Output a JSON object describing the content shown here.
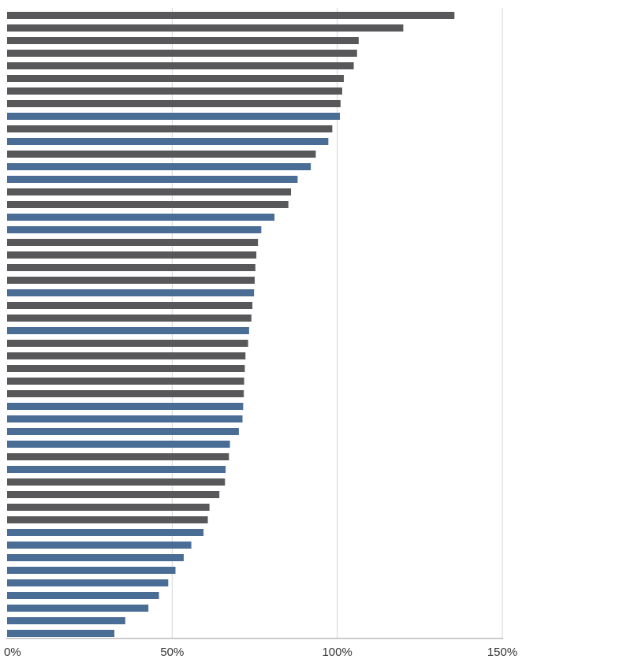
{
  "chart_data": {
    "type": "bar",
    "orientation": "horizontal",
    "title": "",
    "xlabel": "",
    "ylabel": "",
    "xlim": [
      0,
      150
    ],
    "x_ticks": [
      {
        "value": 0,
        "label": "0%"
      },
      {
        "value": 50,
        "label": "50%"
      },
      {
        "value": 100,
        "label": "100%"
      },
      {
        "value": 150,
        "label": "150%"
      }
    ],
    "grid": "vertical",
    "legend": "none",
    "colors": {
      "gray": "#58585a",
      "blue": "#4a6d95",
      "grid": "#d4d4d4",
      "axis": "#9a9a9a"
    },
    "bars": [
      {
        "value": 135.5,
        "color": "gray"
      },
      {
        "value": 120.0,
        "color": "gray"
      },
      {
        "value": 106.5,
        "color": "gray"
      },
      {
        "value": 106.0,
        "color": "gray"
      },
      {
        "value": 105.0,
        "color": "gray"
      },
      {
        "value": 102.0,
        "color": "gray"
      },
      {
        "value": 101.5,
        "color": "gray"
      },
      {
        "value": 101.0,
        "color": "gray"
      },
      {
        "value": 100.8,
        "color": "blue"
      },
      {
        "value": 98.5,
        "color": "gray"
      },
      {
        "value": 97.3,
        "color": "blue"
      },
      {
        "value": 93.5,
        "color": "gray"
      },
      {
        "value": 92.0,
        "color": "blue"
      },
      {
        "value": 88.0,
        "color": "blue"
      },
      {
        "value": 86.0,
        "color": "gray"
      },
      {
        "value": 85.2,
        "color": "gray"
      },
      {
        "value": 81.0,
        "color": "blue"
      },
      {
        "value": 77.0,
        "color": "blue"
      },
      {
        "value": 76.0,
        "color": "gray"
      },
      {
        "value": 75.5,
        "color": "gray"
      },
      {
        "value": 75.2,
        "color": "gray"
      },
      {
        "value": 75.0,
        "color": "gray"
      },
      {
        "value": 74.8,
        "color": "blue"
      },
      {
        "value": 74.3,
        "color": "gray"
      },
      {
        "value": 74.0,
        "color": "gray"
      },
      {
        "value": 73.3,
        "color": "blue"
      },
      {
        "value": 73.0,
        "color": "gray"
      },
      {
        "value": 72.2,
        "color": "gray"
      },
      {
        "value": 72.0,
        "color": "gray"
      },
      {
        "value": 71.8,
        "color": "gray"
      },
      {
        "value": 71.7,
        "color": "gray"
      },
      {
        "value": 71.5,
        "color": "blue"
      },
      {
        "value": 71.3,
        "color": "blue"
      },
      {
        "value": 70.2,
        "color": "blue"
      },
      {
        "value": 67.5,
        "color": "blue"
      },
      {
        "value": 67.2,
        "color": "gray"
      },
      {
        "value": 66.2,
        "color": "blue"
      },
      {
        "value": 66.0,
        "color": "gray"
      },
      {
        "value": 64.3,
        "color": "gray"
      },
      {
        "value": 61.3,
        "color": "gray"
      },
      {
        "value": 60.8,
        "color": "gray"
      },
      {
        "value": 59.5,
        "color": "blue"
      },
      {
        "value": 55.8,
        "color": "blue"
      },
      {
        "value": 53.5,
        "color": "blue"
      },
      {
        "value": 51.0,
        "color": "blue"
      },
      {
        "value": 48.8,
        "color": "blue"
      },
      {
        "value": 46.0,
        "color": "blue"
      },
      {
        "value": 42.8,
        "color": "blue"
      },
      {
        "value": 35.8,
        "color": "blue"
      },
      {
        "value": 32.5,
        "color": "blue"
      }
    ]
  }
}
